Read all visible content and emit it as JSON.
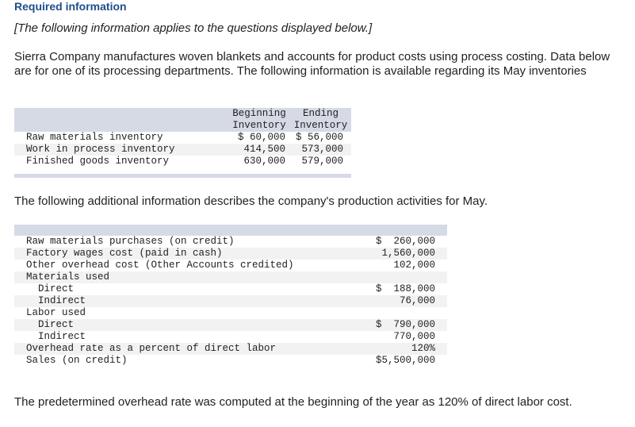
{
  "title": "Required information",
  "intro": "[The following information applies to the questions displayed below.]",
  "paragraph": "Sierra Company manufactures woven blankets and accounts for product costs using process costing. Data below are for one of its processing departments. The following information is available regarding its May inventories",
  "inventory_table": {
    "headers": [
      [
        "Beginning",
        "Ending"
      ],
      [
        "Inventory",
        "Inventory"
      ]
    ],
    "rows": [
      {
        "label": "Raw materials inventory",
        "beginning": "$ 60,000",
        "ending": "$ 56,000"
      },
      {
        "label": "Work in process inventory",
        "beginning": "414,500",
        "ending": "573,000"
      },
      {
        "label": "Finished goods inventory",
        "beginning": "630,000",
        "ending": "579,000"
      }
    ]
  },
  "middle_text": "The following additional information describes the company's production activities for May.",
  "activities_table": {
    "rows": [
      {
        "label": "Raw materials purchases (on credit)",
        "value": "$  260,000"
      },
      {
        "label": "Factory wages cost (paid in cash)",
        "value": "1,560,000"
      },
      {
        "label": "Other overhead cost (Other Accounts credited)",
        "value": "102,000"
      },
      {
        "label": "Materials used",
        "value": ""
      },
      {
        "label": "  Direct",
        "value": "$  188,000"
      },
      {
        "label": "  Indirect",
        "value": "76,000"
      },
      {
        "label": "Labor used",
        "value": ""
      },
      {
        "label": "  Direct",
        "value": "$  790,000"
      },
      {
        "label": "  Indirect",
        "value": "770,000"
      },
      {
        "label": "Overhead rate as a percent of direct labor",
        "value": "120%"
      },
      {
        "label": "Sales (on credit)",
        "value": "$5,500,000"
      }
    ]
  },
  "closing_text": "The predetermined overhead rate was computed at the beginning of the year as 120% of direct labor cost."
}
